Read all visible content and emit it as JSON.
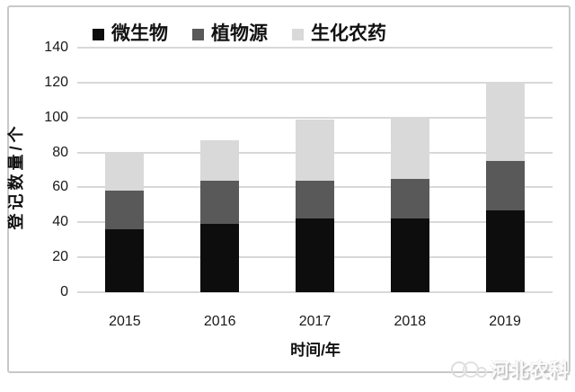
{
  "watermark": {
    "text": "河北农科",
    "logo": "overlapping-circles-logo"
  },
  "chart_data": {
    "type": "bar",
    "stacked": true,
    "title": "",
    "categories": [
      "2015",
      "2016",
      "2017",
      "2018",
      "2019"
    ],
    "series": [
      {
        "name": "微生物",
        "color": "#0d0d0d",
        "values": [
          36,
          39,
          42,
          42,
          47
        ]
      },
      {
        "name": "植物源",
        "color": "#595959",
        "values": [
          22,
          25,
          22,
          23,
          28
        ]
      },
      {
        "name": "生化农药",
        "color": "#d9d9d9",
        "values": [
          22,
          23,
          35,
          35,
          45
        ]
      }
    ],
    "stack_totals": [
      80,
      87,
      99,
      100,
      120
    ],
    "xlabel": "时间/年",
    "ylabel": "登记数量/个",
    "ylim": [
      0,
      140
    ],
    "yticks": [
      0,
      20,
      40,
      60,
      80,
      100,
      120,
      140
    ],
    "grid": true,
    "legend_position": "top",
    "colors": {
      "grid": "#d8d8d8",
      "frame": "#c8c8c8",
      "text": "#1a1a1a"
    }
  }
}
